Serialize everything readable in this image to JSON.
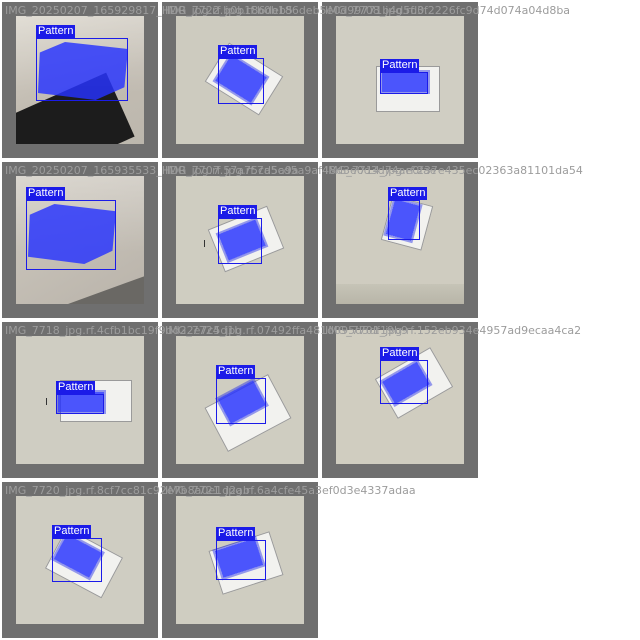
{
  "label_name": "Pattern",
  "colors": {
    "tile_background": "#6f6f6f",
    "mask": "#2632ff",
    "box": "#1b1be8",
    "label_text": "#ffffff",
    "filename_text": "#9c9c9c"
  },
  "tiles": [
    {
      "filename": "IMG_20250207_165929817_HDR_jpg.rf.b0b186deb5"
    },
    {
      "filename": "IMG_7722_jpg.rf.b0b186deb5e0d99771b4d5d0..."
    },
    {
      "filename": "IMG_7708_jpg.rf.3f2226fc9d74d074a04d8ba"
    },
    {
      "filename": "IMG_20250207_165935533_HDR_jpg.rf.57a75cd5a9a"
    },
    {
      "filename": "IMG_7707_jpg.rf.7a5cd5a9af48d3e0d3d74ae0fae"
    },
    {
      "filename": "IMG_7714_jpg.rf.237e435ec02363a81101da54"
    },
    {
      "filename": "IMG_7718_jpg.rf.4cfb1bc19f9dd22e7c5d1b"
    },
    {
      "filename": "IMG_7724_jpg.rf.07492ffa481d095d5df19b9"
    },
    {
      "filename": "IMG_7701_jpg.rf.152eb934e4957ad9ecaa4ca2"
    },
    {
      "filename": "IMG_7720_jpg.rf.8cf7cc81c92e7b8a0e1d2ab"
    },
    {
      "filename": "IMG_7721_jpg.rf.6a4cfe45a3ef0d3e4337adaa"
    }
  ]
}
